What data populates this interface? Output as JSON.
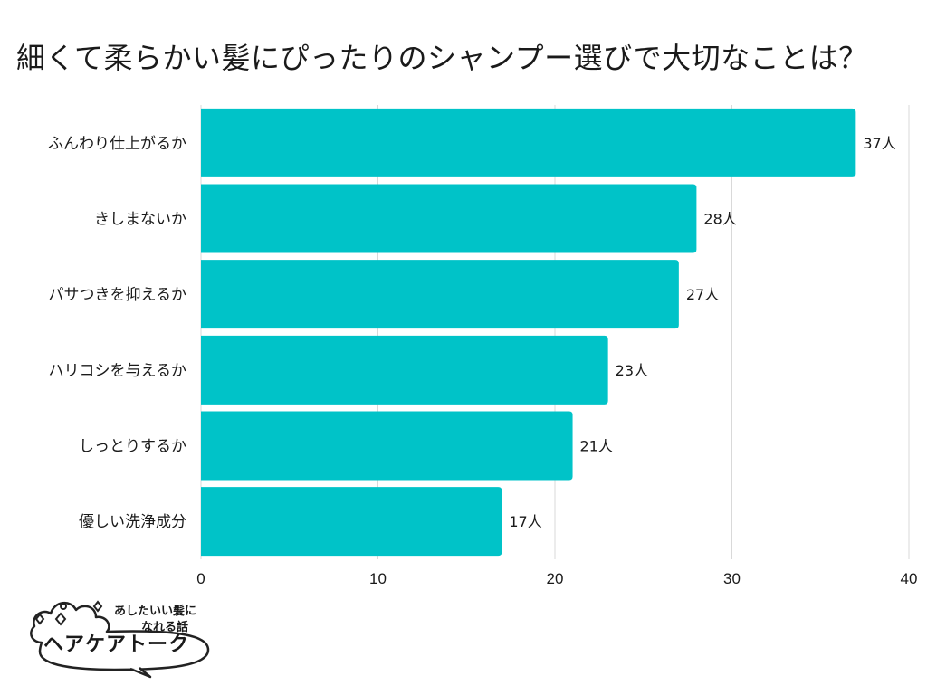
{
  "chart_data": {
    "type": "bar",
    "orientation": "horizontal",
    "title": "細くて柔らかい髪にぴったりのシャンプー選びで大切なことは？",
    "categories": [
      "ふんわり仕上がるか",
      "きしまないか",
      "パサつきを抑えるか",
      "ハリコシを与えるか",
      "しっとりするか",
      "優しい洗浄成分"
    ],
    "values": [
      37,
      28,
      27,
      23,
      21,
      17
    ],
    "value_labels": [
      "37人",
      "28人",
      "27人",
      "23人",
      "21人",
      "17人"
    ],
    "unit": "人",
    "xlim": [
      0,
      40
    ],
    "x_ticks": [
      0,
      10,
      20,
      30,
      40
    ],
    "grid": true,
    "bar_color": "#00C3C8",
    "grid_color": "#d9d9d9"
  },
  "logo": {
    "tagline_line1": "あしたいい髪に",
    "tagline_line2": "なれる話",
    "name": "ヘアケアトーク"
  }
}
